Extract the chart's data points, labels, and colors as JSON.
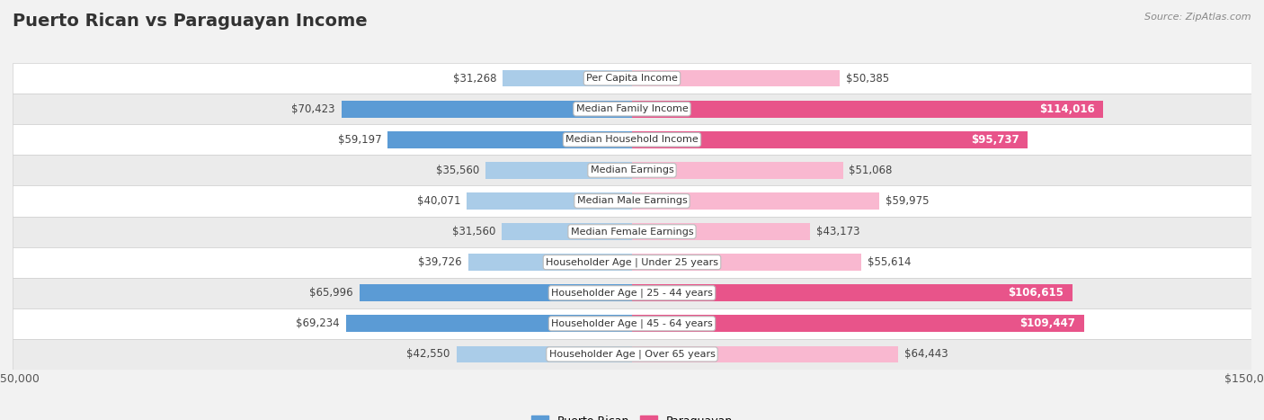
{
  "title": "Puerto Rican vs Paraguayan Income",
  "source": "Source: ZipAtlas.com",
  "categories": [
    "Per Capita Income",
    "Median Family Income",
    "Median Household Income",
    "Median Earnings",
    "Median Male Earnings",
    "Median Female Earnings",
    "Householder Age | Under 25 years",
    "Householder Age | 25 - 44 years",
    "Householder Age | 45 - 64 years",
    "Householder Age | Over 65 years"
  ],
  "puerto_rican": [
    31268,
    70423,
    59197,
    35560,
    40071,
    31560,
    39726,
    65996,
    69234,
    42550
  ],
  "paraguayan": [
    50385,
    114016,
    95737,
    51068,
    59975,
    43173,
    55614,
    106615,
    109447,
    64443
  ],
  "puerto_rican_colors": [
    "#aacce8",
    "#5b9bd5",
    "#5b9bd5",
    "#aacce8",
    "#aacce8",
    "#aacce8",
    "#aacce8",
    "#5b9bd5",
    "#5b9bd5",
    "#aacce8"
  ],
  "paraguayan_colors": [
    "#f9b8d0",
    "#e8548a",
    "#e8548a",
    "#f9b8d0",
    "#f9b8d0",
    "#f9b8d0",
    "#f9b8d0",
    "#e8548a",
    "#e8548a",
    "#f9b8d0"
  ],
  "py_label_white": [
    false,
    true,
    true,
    false,
    false,
    false,
    false,
    true,
    true,
    false
  ],
  "max_value": 150000,
  "bar_height": 0.55,
  "bg_color": "#f2f2f2",
  "row_colors": [
    "#ffffff",
    "#ebebeb",
    "#ffffff",
    "#ebebeb",
    "#ffffff",
    "#ebebeb",
    "#ffffff",
    "#ebebeb",
    "#ffffff",
    "#ebebeb"
  ],
  "label_fontsize": 8.0,
  "value_fontsize": 8.5,
  "title_fontsize": 14,
  "legend_fontsize": 9
}
